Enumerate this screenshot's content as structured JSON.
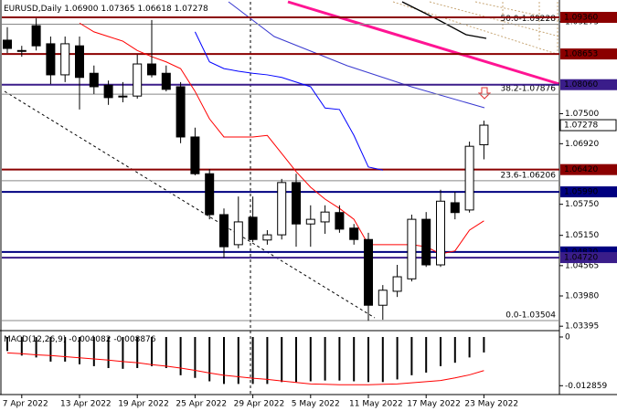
{
  "chart_data": {
    "type": "candlestick",
    "title": "EURUSD,Daily",
    "last_bar_labels": [
      "1.06900",
      "1.07365",
      "1.06618",
      "1.07278"
    ],
    "categories": [
      null,
      "7 Apr 2022",
      null,
      null,
      null,
      "13 Apr 2022",
      null,
      null,
      null,
      "19 Apr 2022",
      null,
      null,
      null,
      "25 Apr 2022",
      null,
      null,
      null,
      "29 Apr 2022",
      null,
      null,
      null,
      "5 May 2022",
      null,
      null,
      null,
      "11 May 2022",
      null,
      null,
      null,
      "17 May 2022",
      null,
      null,
      null,
      "23 May 2022"
    ],
    "open": [
      1.0892,
      1.0872,
      1.092,
      1.0885,
      1.0825,
      1.0881,
      1.0828,
      1.0805,
      1.0783,
      1.0784,
      1.0846,
      1.0828,
      1.0802,
      1.0705,
      1.0634,
      1.0555,
      1.0497,
      1.055,
      1.0506,
      1.0516,
      1.0617,
      1.0537,
      1.0541,
      1.0559,
      1.0529,
      1.0507,
      1.038,
      1.0407,
      1.0431,
      1.0546,
      1.0458,
      1.0578,
      1.0564,
      1.069
    ],
    "high": [
      1.0917,
      1.0881,
      1.0934,
      1.0899,
      1.0899,
      1.0899,
      1.0843,
      1.0814,
      1.0811,
      1.0864,
      1.0931,
      1.0843,
      1.0811,
      1.0723,
      1.0643,
      1.0567,
      1.059,
      1.059,
      1.0525,
      1.0624,
      1.0634,
      1.0573,
      1.0573,
      1.0573,
      1.0537,
      1.052,
      1.0419,
      1.0458,
      1.0555,
      1.056,
      1.0603,
      1.0599,
      1.0696,
      1.07365
    ],
    "low": [
      1.0867,
      1.086,
      1.0872,
      1.0807,
      1.0811,
      1.0758,
      1.0788,
      1.0767,
      1.0772,
      1.0779,
      1.082,
      1.0793,
      1.0693,
      1.0631,
      1.0546,
      1.0472,
      1.049,
      1.0502,
      1.0497,
      1.0507,
      1.0493,
      1.0493,
      1.0518,
      1.052,
      1.0497,
      1.035,
      1.0352,
      1.0396,
      1.0426,
      1.0454,
      1.0454,
      1.0546,
      1.0559,
      1.06618
    ],
    "close": [
      1.0876,
      1.0871,
      1.0881,
      1.0825,
      1.0885,
      1.082,
      1.0802,
      1.0781,
      1.0784,
      1.0846,
      1.0825,
      1.0797,
      1.0705,
      1.0634,
      1.0555,
      1.0493,
      1.0541,
      1.0507,
      1.0516,
      1.0617,
      1.0537,
      1.0546,
      1.056,
      1.0527,
      1.0507,
      1.038,
      1.0409,
      1.0435,
      1.0546,
      1.0458,
      1.0581,
      1.0559,
      1.0687,
      1.07278
    ],
    "overlays": [
      {
        "color": "#ff0000",
        "values": [
          null,
          null,
          null,
          null,
          null,
          1.0925,
          1.0908,
          1.0899,
          1.089,
          1.0872,
          1.086,
          1.085,
          1.0837,
          1.0793,
          1.074,
          1.0705,
          1.0705,
          1.0705,
          1.0708,
          1.0673,
          1.0638,
          1.0608,
          1.0585,
          1.0567,
          1.0546,
          1.0497,
          1.0497,
          1.0497,
          1.0497,
          1.0493,
          1.0479,
          1.0485,
          1.0525,
          1.0543
        ]
      },
      {
        "color": "#0000ff",
        "values": [
          null,
          null,
          null,
          null,
          null,
          null,
          null,
          null,
          null,
          null,
          null,
          null,
          null,
          1.0908,
          1.085,
          1.0837,
          1.0832,
          1.0828,
          1.0825,
          1.082,
          1.0811,
          1.0802,
          1.0761,
          1.0758,
          1.0708,
          1.0647,
          1.0641,
          null,
          null,
          null,
          null,
          null,
          null,
          null
        ]
      }
    ],
    "ylim": [
      1.0331,
      1.0966
    ],
    "yticks": [
      1.09275,
      {
        "value": 1.075,
        "label": "1.07500"
      },
      {
        "value": 1.0692,
        "label": "1.06920"
      },
      {
        "value": 1.0575,
        "label": "1.05750"
      },
      {
        "value": 1.0515,
        "label": "1.05150"
      },
      1.04565,
      {
        "value": 1.0398,
        "label": "1.03980"
      },
      1.03395
    ],
    "levels": [
      {
        "value": 1.0936,
        "label": "1.09360",
        "color": "#8b0000"
      },
      {
        "value": 1.08653,
        "label": "1.08653",
        "color": "#8b0000"
      },
      {
        "value": 1.0806,
        "label": "1.08060",
        "color": "#3a1d8a"
      },
      {
        "value": 1.0642,
        "label": "1.06420",
        "color": "#8b0000"
      },
      {
        "value": 1.0599,
        "label": "1.05990",
        "color": "#000080"
      },
      {
        "value": 1.0483,
        "label": "1.04830",
        "color": "#000080"
      },
      {
        "value": 1.0472,
        "label": "1.04720",
        "color": "#3a1d8a"
      }
    ],
    "last_price": {
      "value": 1.07278,
      "label": "1.07278"
    },
    "fib_levels": [
      {
        "value": 1.09228,
        "label": "50.0-1.09228"
      },
      {
        "value": 1.07876,
        "label": "38.2-1.07876"
      },
      {
        "value": 1.06206,
        "label": "23.6-1.06206"
      },
      {
        "value": 1.03504,
        "label": "0.0-1.03504"
      }
    ],
    "macd": {
      "label": "MACD(12,26,9)",
      "histogram": [
        -0.0037,
        -0.0049,
        -0.0054,
        -0.0065,
        -0.0065,
        -0.0072,
        -0.0077,
        -0.0082,
        -0.0084,
        -0.0082,
        -0.0077,
        -0.0082,
        -0.0101,
        -0.0108,
        -0.0117,
        -0.0124,
        -0.0124,
        -0.0124,
        -0.0124,
        -0.0119,
        -0.0119,
        -0.0117,
        -0.0115,
        -0.0115,
        -0.0117,
        -0.0119,
        -0.0119,
        -0.0112,
        -0.0101,
        -0.0094,
        -0.0077,
        -0.0068,
        -0.0054,
        -0.004082
      ],
      "signal": [
        -0.0042,
        -0.0044,
        -0.0047,
        -0.0049,
        -0.0052,
        -0.0055,
        -0.0058,
        -0.0061,
        -0.0065,
        -0.0068,
        -0.0073,
        -0.0077,
        -0.0082,
        -0.0088,
        -0.0095,
        -0.0101,
        -0.0105,
        -0.0109,
        -0.0112,
        -0.0116,
        -0.012,
        -0.0124,
        -0.0125,
        -0.0126,
        -0.0126,
        -0.0126,
        -0.0125,
        -0.0124,
        -0.0121,
        -0.0118,
        -0.0115,
        -0.0108,
        -0.01,
        -0.008876
      ],
      "signal_color": "#ff0000",
      "ylim": [
        -0.0152,
        0.0012
      ],
      "yticks": [
        0,
        -0.012859
      ]
    }
  }
}
